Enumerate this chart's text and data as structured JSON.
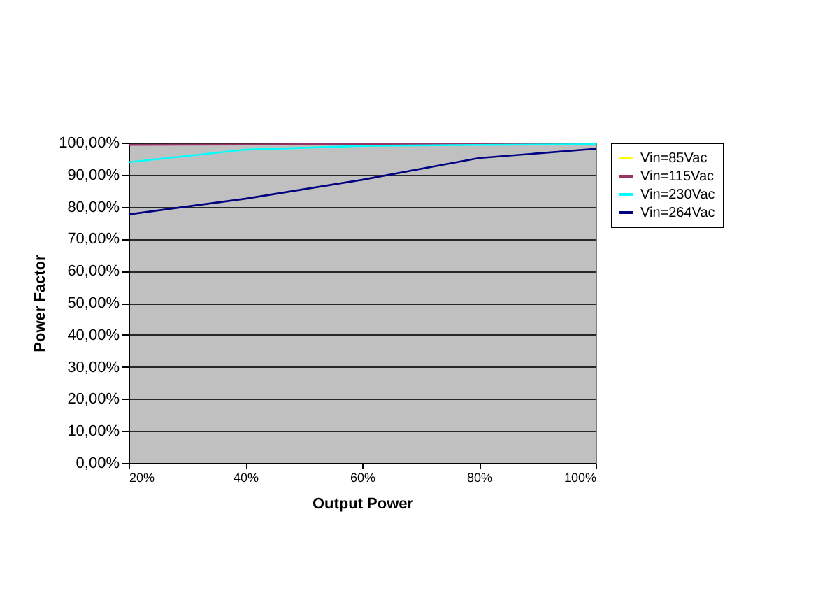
{
  "chart_data": {
    "type": "line",
    "xlabel": "Output Power",
    "ylabel": "Power Factor",
    "categories": [
      "20%",
      "40%",
      "60%",
      "80%",
      "100%"
    ],
    "series": [
      {
        "name": "Vin=85Vac",
        "color": "#ffff00",
        "values": [
          null,
          null,
          null,
          null,
          null
        ]
      },
      {
        "name": "Vin=115Vac",
        "color": "#993366",
        "values": [
          99.3,
          99.4,
          99.6,
          99.7,
          99.7
        ]
      },
      {
        "name": "Vin=230Vac",
        "color": "#00ffff",
        "values": [
          93.9,
          97.8,
          99.0,
          99.3,
          99.5
        ]
      },
      {
        "name": "Vin=264Vac",
        "color": "#000080",
        "values": [
          77.6,
          82.5,
          88.4,
          95.2,
          98.1
        ]
      }
    ],
    "ylim": [
      0,
      100
    ],
    "yticks": [
      {
        "value": 0,
        "label": "0,00%"
      },
      {
        "value": 10,
        "label": "10,00%"
      },
      {
        "value": 20,
        "label": "20,00%"
      },
      {
        "value": 30,
        "label": "30,00%"
      },
      {
        "value": 40,
        "label": "40,00%"
      },
      {
        "value": 50,
        "label": "50,00%"
      },
      {
        "value": 60,
        "label": "60,00%"
      },
      {
        "value": 70,
        "label": "70,00%"
      },
      {
        "value": 80,
        "label": "80,00%"
      },
      {
        "value": 90,
        "label": "90,00%"
      },
      {
        "value": 100,
        "label": "100,00%"
      }
    ],
    "grid": "y",
    "legend": "right"
  }
}
